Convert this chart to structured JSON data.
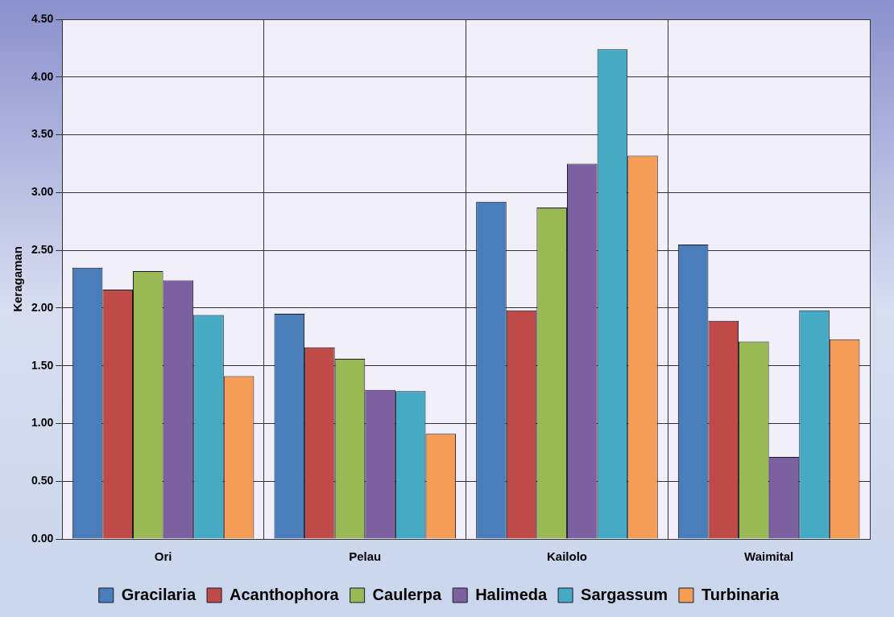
{
  "chart_data": {
    "type": "bar",
    "ylabel": "Keragaman",
    "categories": [
      "Ori",
      "Pelau",
      "Kailolo",
      "Waimital"
    ],
    "series": [
      {
        "name": "Gracilaria",
        "color": "#4a7ebb",
        "values": [
          2.35,
          1.95,
          2.92,
          2.55
        ]
      },
      {
        "name": "Acanthophora",
        "color": "#be4b48",
        "values": [
          2.16,
          1.66,
          1.98,
          1.89
        ]
      },
      {
        "name": "Caulerpa",
        "color": "#98b954",
        "values": [
          2.32,
          1.56,
          2.87,
          1.71
        ]
      },
      {
        "name": "Halimeda",
        "color": "#7d60a0",
        "values": [
          2.24,
          1.29,
          3.25,
          0.71
        ]
      },
      {
        "name": "Sargassum",
        "color": "#46aac5",
        "values": [
          1.94,
          1.28,
          4.24,
          1.98
        ]
      },
      {
        "name": "Turbinaria",
        "color": "#f59d56",
        "values": [
          1.41,
          0.91,
          3.32,
          1.73
        ]
      }
    ],
    "ylim": [
      0,
      4.5
    ],
    "yticks": [
      {
        "value": 0,
        "label": "0.00"
      },
      {
        "value": 0.5,
        "label": "0.50"
      },
      {
        "value": 1,
        "label": "1.00"
      },
      {
        "value": 1.5,
        "label": "1.50"
      },
      {
        "value": 2,
        "label": "2.00"
      },
      {
        "value": 2.5,
        "label": "2.50"
      },
      {
        "value": 3,
        "label": "3.00"
      },
      {
        "value": 3.5,
        "label": "3.50"
      },
      {
        "value": 4,
        "label": "4.00"
      },
      {
        "value": 4.5,
        "label": "4.50"
      }
    ],
    "grid": true,
    "legend": "bottom"
  }
}
